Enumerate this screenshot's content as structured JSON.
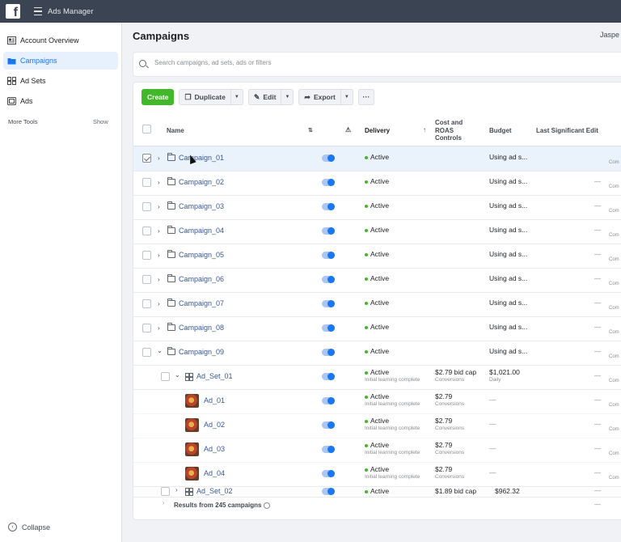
{
  "app": {
    "title": "Ads Manager"
  },
  "sidebar": {
    "items": [
      {
        "label": "Account Overview",
        "icon": "account-overview-icon"
      },
      {
        "label": "Campaigns",
        "icon": "campaigns-folder-icon"
      },
      {
        "label": "Ad Sets",
        "icon": "ad-sets-grid-icon"
      },
      {
        "label": "Ads",
        "icon": "ads-icon"
      }
    ],
    "more_tools": "More Tools",
    "show": "Show",
    "collapse": "Collapse"
  },
  "header": {
    "title": "Campaigns",
    "user": "Jaspe"
  },
  "search": {
    "placeholder": "Search campaigns, ad sets, ads or filters"
  },
  "toolbar": {
    "create": "Create",
    "duplicate": "Duplicate",
    "edit": "Edit",
    "export": "Export",
    "more": "···"
  },
  "columns": {
    "name": "Name",
    "delivery": "Delivery",
    "cost_line1": "Cost and",
    "cost_line2": "ROAS",
    "cost_line3": "Controls",
    "budget": "Budget",
    "last_edit": "Last Significant Edit"
  },
  "rows": [
    {
      "name": "Campaign_01",
      "delivery": "Active",
      "budget": "Using ad s...",
      "edit": "",
      "comp": "Com"
    },
    {
      "name": "Campaign_02",
      "delivery": "Active",
      "budget": "Using ad s...",
      "edit": "—",
      "comp": "Com"
    },
    {
      "name": "Campaign_03",
      "delivery": "Active",
      "budget": "Using ad s...",
      "edit": "—",
      "comp": "Com"
    },
    {
      "name": "Campaign_04",
      "delivery": "Active",
      "budget": "Using ad s...",
      "edit": "—",
      "comp": "Com"
    },
    {
      "name": "Campaign_05",
      "delivery": "Active",
      "budget": "Using ad s...",
      "edit": "—",
      "comp": "Com"
    },
    {
      "name": "Campaign_06",
      "delivery": "Active",
      "budget": "Using ad s...",
      "edit": "—",
      "comp": "Com"
    },
    {
      "name": "Campaign_07",
      "delivery": "Active",
      "budget": "Using ad s...",
      "edit": "—",
      "comp": "Com"
    },
    {
      "name": "Campaign_08",
      "delivery": "Active",
      "budget": "Using ad s...",
      "edit": "—",
      "comp": "Com"
    },
    {
      "name": "Campaign_09",
      "delivery": "Active",
      "budget": "Using ad s...",
      "edit": "—",
      "comp": "Com"
    },
    {
      "name": "Ad_Set_01",
      "delivery": "Active",
      "sub": "Initial learning complete",
      "cost": "$2.79 bid cap",
      "cost_sub": "Conversions",
      "budget": "$1,021.00",
      "budget_sub": "Daily",
      "edit": "—",
      "comp": "Com"
    },
    {
      "name": "Ad_01",
      "delivery": "Active",
      "sub": "Initial learning complete",
      "cost": "$2.79",
      "cost_sub": "Conversions",
      "budget": "—",
      "edit": "—",
      "comp": "Com"
    },
    {
      "name": "Ad_02",
      "delivery": "Active",
      "sub": "Initial learning complete",
      "cost": "$2.79",
      "cost_sub": "Conversions",
      "budget": "—",
      "edit": "—",
      "comp": "Com"
    },
    {
      "name": "Ad_03",
      "delivery": "Active",
      "sub": "Initial learning complete",
      "cost": "$2.79",
      "cost_sub": "Conversions",
      "budget": "—",
      "edit": "—",
      "comp": "Com"
    },
    {
      "name": "Ad_04",
      "delivery": "Active",
      "sub": "Initial learning complete",
      "cost": "$2.79",
      "cost_sub": "Conversions",
      "budget": "—",
      "edit": "—",
      "comp": "Com"
    },
    {
      "name": "Ad_Set_02",
      "delivery": "Active",
      "cost": "$1.89 bid cap",
      "budget": "$962.32",
      "edit": "—",
      "comp": ""
    }
  ],
  "footer": {
    "results": "Results from 245 campaigns",
    "dash": "—"
  },
  "colors": {
    "accent": "#1877f2",
    "active": "#42b72a",
    "create": "#42b72a",
    "topbar": "#3b4452"
  }
}
